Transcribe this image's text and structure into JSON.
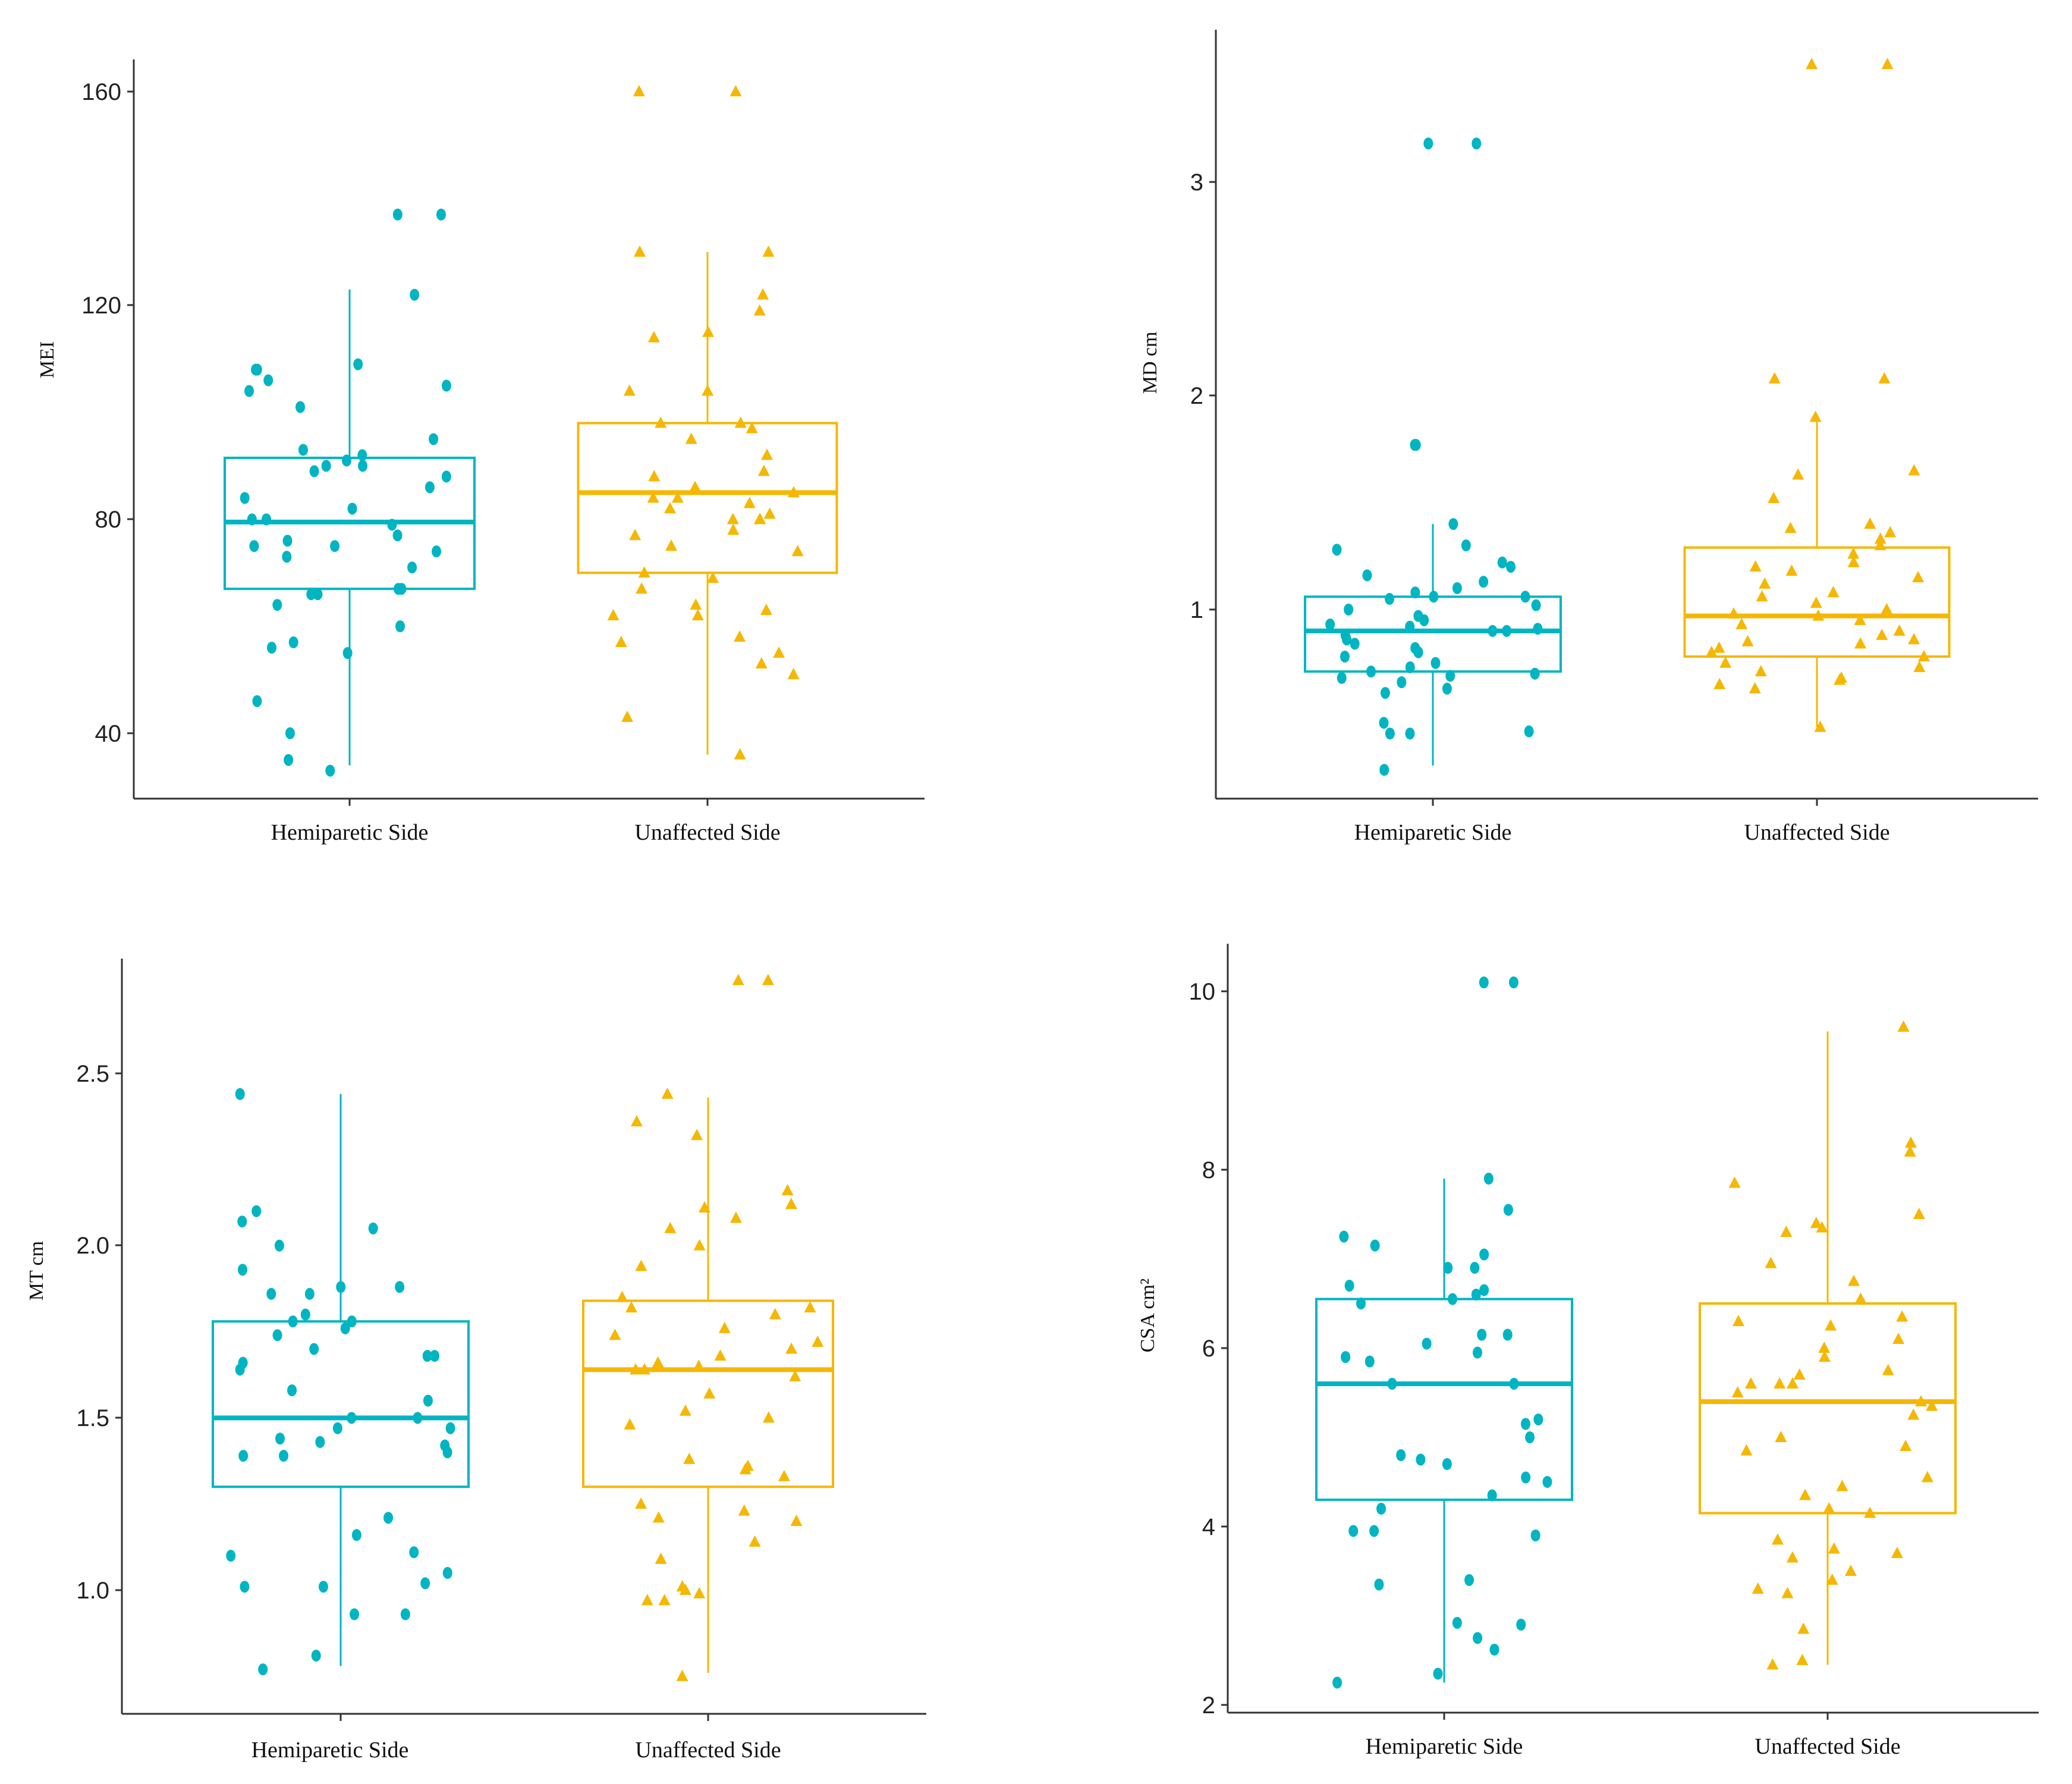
{
  "colors": {
    "hemi": "#00b5c2",
    "unaff": "#f5b700",
    "axis": "#333333"
  },
  "chart_data": [
    {
      "type": "boxplot",
      "ylabel": "MEI",
      "categories": [
        "Hemiparetic Side",
        "Unaffected Side"
      ],
      "ylim": [
        27,
        166
      ],
      "yticks": [
        40,
        80,
        120,
        160
      ],
      "boxes": [
        {
          "name": "Hemiparetic Side",
          "min": 34,
          "q1": 67,
          "median": 79.5,
          "q3": 91.5,
          "max": 123
        },
        {
          "name": "Unaffected Side",
          "min": 36,
          "q1": 70,
          "median": 85,
          "q3": 98,
          "max": 130
        }
      ],
      "points": [
        [
          33,
          35,
          40,
          46,
          55,
          56,
          57,
          60,
          64,
          66,
          66,
          67,
          67,
          71,
          73,
          74,
          75,
          75,
          76,
          77,
          79,
          80,
          80,
          82,
          84,
          86,
          88,
          89,
          90,
          90,
          91,
          92,
          93,
          95,
          101,
          104,
          105,
          106,
          108,
          108,
          109,
          122,
          137,
          137
        ],
        [
          36,
          43,
          51,
          53,
          55,
          57,
          58,
          62,
          62,
          63,
          64,
          67,
          69,
          70,
          74,
          75,
          77,
          78,
          80,
          80,
          80,
          81,
          82,
          83,
          84,
          84,
          85,
          86,
          88,
          89,
          92,
          95,
          97,
          98,
          98,
          104,
          104,
          114,
          115,
          119,
          122,
          130,
          130,
          160,
          160
        ]
      ]
    },
    {
      "type": "boxplot",
      "ylabel": "MD cm",
      "categories": [
        "Hemiparetic Side",
        "Unaffected Side"
      ],
      "ylim": [
        0.12,
        3.62
      ],
      "yticks": [
        1,
        2,
        3
      ],
      "boxes": [
        {
          "name": "Hemiparetic Side",
          "min": 0.27,
          "q1": 0.71,
          "median": 0.9,
          "q3": 1.06,
          "max": 1.4
        },
        {
          "name": "Unaffected Side",
          "min": 0.45,
          "q1": 0.78,
          "median": 0.97,
          "q3": 1.29,
          "max": 1.9
        }
      ],
      "points": [
        [
          0.25,
          0.42,
          0.42,
          0.43,
          0.47,
          0.61,
          0.63,
          0.66,
          0.68,
          0.69,
          0.7,
          0.71,
          0.73,
          0.75,
          0.78,
          0.8,
          0.82,
          0.84,
          0.86,
          0.88,
          0.9,
          0.9,
          0.91,
          0.92,
          0.93,
          0.95,
          0.97,
          1.0,
          1.02,
          1.05,
          1.06,
          1.06,
          1.08,
          1.1,
          1.13,
          1.16,
          1.2,
          1.22,
          1.28,
          1.3,
          1.4,
          1.77,
          1.77,
          3.18,
          3.18
        ],
        [
          0.45,
          0.63,
          0.65,
          0.67,
          0.68,
          0.71,
          0.73,
          0.75,
          0.78,
          0.8,
          0.82,
          0.84,
          0.85,
          0.86,
          0.88,
          0.9,
          0.93,
          0.95,
          0.97,
          0.98,
          1.0,
          1.03,
          1.06,
          1.08,
          1.12,
          1.15,
          1.18,
          1.2,
          1.22,
          1.26,
          1.3,
          1.33,
          1.36,
          1.38,
          1.4,
          1.52,
          1.63,
          1.65,
          1.9,
          2.08,
          2.08,
          3.55,
          3.55
        ]
      ]
    },
    {
      "type": "boxplot",
      "ylabel": "MT cm",
      "categories": [
        "Hemiparetic Side",
        "Unaffected Side"
      ],
      "ylim": [
        0.68,
        2.87
      ],
      "yticks": [
        1.0,
        1.5,
        2.0,
        2.5
      ],
      "tick_format": 1,
      "boxes": [
        {
          "name": "Hemiparetic Side",
          "min": 0.78,
          "q1": 1.3,
          "median": 1.5,
          "q3": 1.78,
          "max": 2.44
        },
        {
          "name": "Unaffected Side",
          "min": 0.76,
          "q1": 1.3,
          "median": 1.64,
          "q3": 1.84,
          "max": 2.43
        }
      ],
      "points": [
        [
          0.77,
          0.81,
          0.93,
          0.93,
          1.01,
          1.01,
          1.02,
          1.05,
          1.1,
          1.11,
          1.16,
          1.21,
          1.39,
          1.39,
          1.4,
          1.42,
          1.43,
          1.44,
          1.47,
          1.47,
          1.5,
          1.5,
          1.55,
          1.58,
          1.64,
          1.66,
          1.68,
          1.68,
          1.7,
          1.74,
          1.76,
          1.78,
          1.78,
          1.8,
          1.86,
          1.86,
          1.88,
          1.88,
          1.93,
          2.0,
          2.05,
          2.07,
          2.1,
          2.44
        ],
        [
          0.75,
          0.97,
          0.97,
          0.99,
          1.0,
          1.01,
          1.09,
          1.14,
          1.2,
          1.21,
          1.23,
          1.25,
          1.33,
          1.35,
          1.36,
          1.38,
          1.48,
          1.5,
          1.52,
          1.57,
          1.62,
          1.64,
          1.64,
          1.65,
          1.66,
          1.68,
          1.7,
          1.72,
          1.74,
          1.76,
          1.8,
          1.82,
          1.82,
          1.85,
          1.94,
          2.0,
          2.05,
          2.08,
          2.11,
          2.12,
          2.16,
          2.32,
          2.36,
          2.44,
          2.77,
          2.77
        ]
      ]
    },
    {
      "type": "boxplot",
      "ylabel": "CSA cm²",
      "categories": [
        "Hemiparetic Side",
        "Unaffected Side"
      ],
      "ylim": [
        1.9,
        10.65
      ],
      "yticks": [
        2,
        4,
        6,
        8,
        10
      ],
      "boxes": [
        {
          "name": "Hemiparetic Side",
          "min": 2.25,
          "q1": 4.3,
          "median": 5.6,
          "q3": 6.55,
          "max": 7.9
        },
        {
          "name": "Unaffected Side",
          "min": 2.45,
          "q1": 4.15,
          "median": 5.4,
          "q3": 6.5,
          "max": 9.55
        }
      ],
      "points": [
        [
          2.25,
          2.35,
          2.62,
          2.75,
          2.9,
          2.92,
          3.35,
          3.4,
          3.9,
          3.95,
          3.95,
          4.2,
          4.35,
          4.5,
          4.55,
          4.7,
          4.75,
          4.8,
          5.0,
          5.15,
          5.2,
          5.6,
          5.6,
          5.85,
          5.9,
          5.95,
          6.05,
          6.15,
          6.15,
          6.5,
          6.55,
          6.6,
          6.65,
          6.7,
          6.9,
          6.9,
          7.05,
          7.15,
          7.25,
          7.55,
          7.9,
          10.1,
          10.1
        ],
        [
          2.45,
          2.5,
          2.85,
          3.25,
          3.3,
          3.4,
          3.5,
          3.65,
          3.7,
          3.75,
          3.85,
          4.15,
          4.2,
          4.35,
          4.45,
          4.55,
          4.85,
          4.9,
          5.0,
          5.25,
          5.35,
          5.4,
          5.5,
          5.6,
          5.6,
          5.6,
          5.7,
          5.75,
          5.9,
          6.0,
          6.1,
          6.25,
          6.3,
          6.35,
          6.55,
          6.75,
          6.95,
          7.3,
          7.35,
          7.4,
          7.5,
          7.85,
          8.2,
          8.3,
          9.6
        ]
      ]
    }
  ]
}
